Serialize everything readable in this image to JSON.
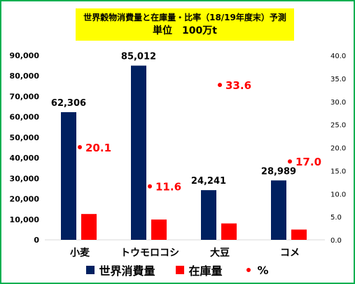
{
  "title": {
    "line1": "世界穀物消費量と在庫量・比率（18/19年度末）予測",
    "line2": "単位　100万t"
  },
  "chart_data": {
    "type": "bar",
    "categories": [
      "小麦",
      "トウモロコシ",
      "大豆",
      "コメ"
    ],
    "series": [
      {
        "name": "世界消費量",
        "values": [
          62306,
          85012,
          24241,
          28989
        ],
        "color": "#002060",
        "axis": "left",
        "labels": [
          "62,306",
          "85,012",
          "24,241",
          "28,989"
        ]
      },
      {
        "name": "在庫量",
        "values": [
          12600,
          9900,
          8000,
          5000
        ],
        "color": "#ff0000",
        "axis": "left",
        "labels": []
      },
      {
        "name": "%",
        "type": "scatter",
        "values": [
          20.1,
          11.6,
          33.6,
          17.0
        ],
        "color": "#ff0000",
        "axis": "right",
        "labels": [
          "20.1",
          "11.6",
          "33.6",
          "17.0"
        ]
      }
    ],
    "y_left": {
      "min": 0,
      "max": 90000,
      "step": 10000,
      "ticks": [
        "0",
        "10,000",
        "20,000",
        "30,000",
        "40,000",
        "50,000",
        "60,000",
        "70,000",
        "80,000",
        "90,000"
      ]
    },
    "y_right": {
      "min": 0,
      "max": 40,
      "step": 5,
      "ticks": [
        "0.0",
        "5.0",
        "10.0",
        "15.0",
        "20.0",
        "25.0",
        "30.0",
        "35.0",
        "40.0"
      ]
    },
    "grid": false,
    "legend_position": "bottom"
  }
}
